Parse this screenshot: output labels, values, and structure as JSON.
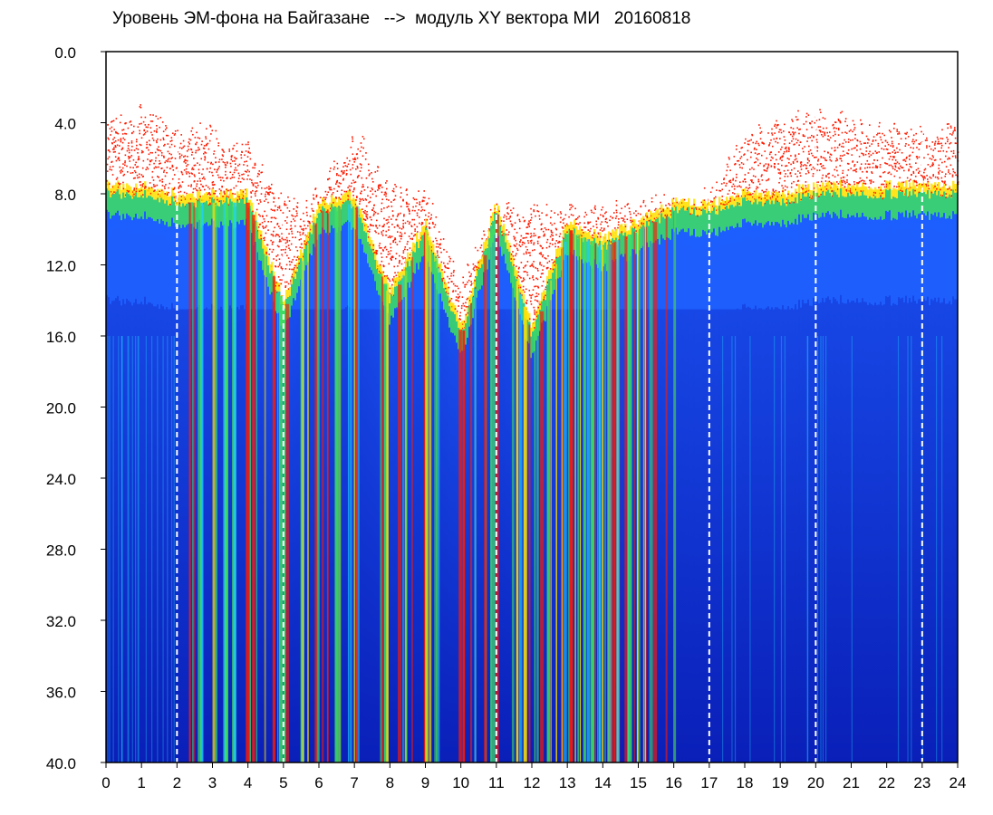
{
  "title": "Уровень ЭМ-фона на Байгазане   -->  модуль XY вектора МИ   20160818",
  "colors": {
    "background": "#ffffff",
    "spectrum_dark": "#0a1fb8",
    "spectrum_mid": "#1e60ff",
    "spectrum_cyan": "#20d0ff",
    "spectrum_green": "#40e060",
    "spectrum_yellow": "#ffe000",
    "spectrum_red": "#ff1a00",
    "dashed_line": "#ffffff",
    "axis": "#000000"
  },
  "chart_data": {
    "type": "heatmap",
    "title": "Уровень ЭМ-фона на Байгазане   -->  модуль XY вектора МИ   20160818",
    "xlabel": "",
    "ylabel": "",
    "xlim": [
      0,
      24
    ],
    "ylim": [
      0,
      40
    ],
    "y_inverted": true,
    "x_ticks": [
      "0",
      "1",
      "2",
      "3",
      "4",
      "5",
      "6",
      "7",
      "8",
      "9",
      "10",
      "11",
      "12",
      "13",
      "14",
      "15",
      "16",
      "17",
      "18",
      "19",
      "20",
      "21",
      "22",
      "23",
      "24"
    ],
    "y_ticks": [
      "0.0",
      "4.0",
      "8.0",
      "12.0",
      "16.0",
      "20.0",
      "24.0",
      "28.0",
      "32.0",
      "36.0",
      "40.0"
    ],
    "dashed_vertical_lines_x": [
      2,
      5,
      11,
      17,
      20,
      23
    ],
    "noise_floor_y_by_hour": [
      {
        "x": 0,
        "red_top": 4.0,
        "dense_top": 8.0
      },
      {
        "x": 1,
        "red_top": 3.5,
        "dense_top": 8.0
      },
      {
        "x": 2,
        "red_top": 4.5,
        "dense_top": 8.5
      },
      {
        "x": 3,
        "red_top": 4.5,
        "dense_top": 8.5
      },
      {
        "x": 4,
        "red_top": 5.5,
        "dense_top": 8.5
      },
      {
        "x": 5,
        "red_top": 8.5,
        "dense_top": 14.5
      },
      {
        "x": 6,
        "red_top": 8.0,
        "dense_top": 9.0
      },
      {
        "x": 7,
        "red_top": 4.5,
        "dense_top": 8.5
      },
      {
        "x": 8,
        "red_top": 8.0,
        "dense_top": 14.0
      },
      {
        "x": 9,
        "red_top": 8.0,
        "dense_top": 10.0
      },
      {
        "x": 10,
        "red_top": 13.0,
        "dense_top": 16.0
      },
      {
        "x": 11,
        "red_top": 8.5,
        "dense_top": 9.0
      },
      {
        "x": 12,
        "red_top": 9.0,
        "dense_top": 16.0
      },
      {
        "x": 13,
        "red_top": 9.0,
        "dense_top": 10.0
      },
      {
        "x": 14,
        "red_top": 9.0,
        "dense_top": 11.0
      },
      {
        "x": 15,
        "red_top": 8.5,
        "dense_top": 10.0
      },
      {
        "x": 16,
        "red_top": 8.5,
        "dense_top": 9.0
      },
      {
        "x": 17,
        "red_top": 8.0,
        "dense_top": 9.0
      },
      {
        "x": 18,
        "red_top": 5.0,
        "dense_top": 8.5
      },
      {
        "x": 19,
        "red_top": 4.0,
        "dense_top": 8.5
      },
      {
        "x": 20,
        "red_top": 3.5,
        "dense_top": 8.0
      },
      {
        "x": 21,
        "red_top": 4.0,
        "dense_top": 8.0
      },
      {
        "x": 22,
        "red_top": 4.5,
        "dense_top": 8.0
      },
      {
        "x": 23,
        "red_top": 4.5,
        "dense_top": 8.0
      },
      {
        "x": 24,
        "red_top": 4.5,
        "dense_top": 8.0
      }
    ]
  }
}
